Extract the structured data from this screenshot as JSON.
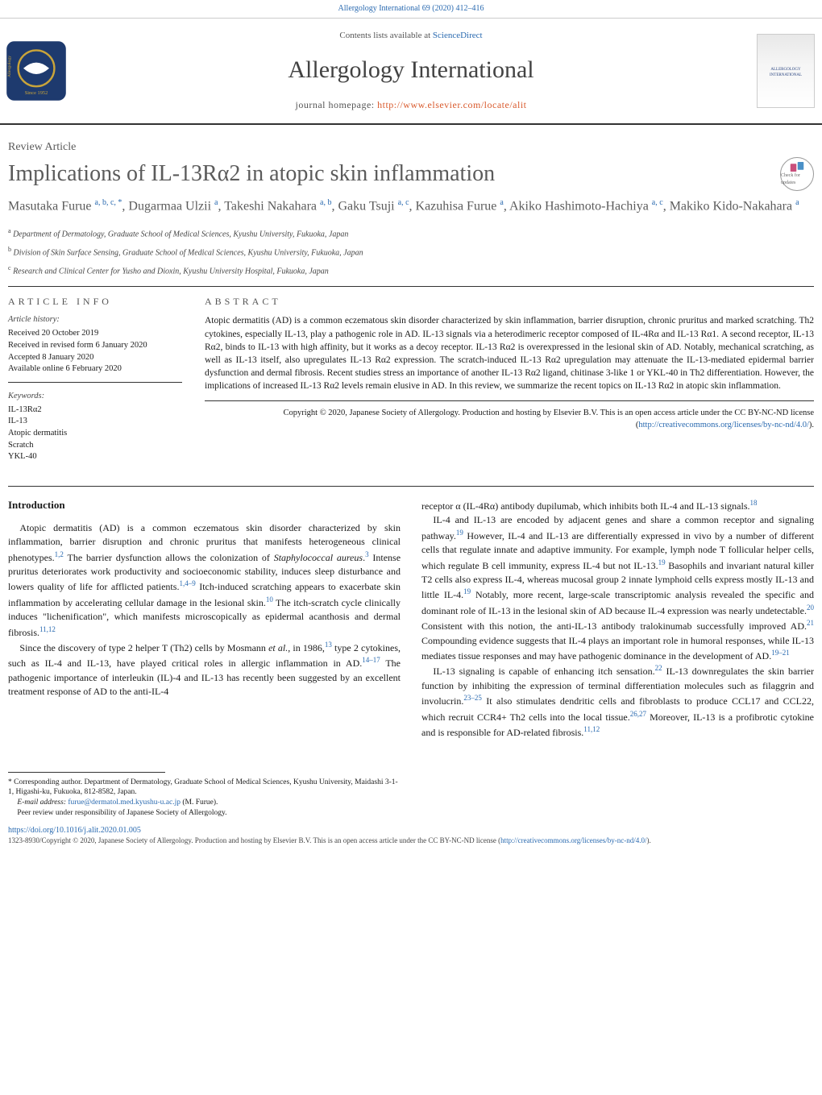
{
  "header_citation": "Allergology International 69 (2020) 412–416",
  "header_citation_link": "Allergology International 69 (2020) 412–416",
  "contents_line_prefix": "Contents lists available at ",
  "contents_link": "ScienceDirect",
  "journal_title": "Allergology International",
  "homepage_prefix": "journal homepage: ",
  "homepage_url": "http://www.elsevier.com/locate/alit",
  "cover_text": "ALLERGOLOGY INTERNATIONAL",
  "article_type": "Review Article",
  "article_title": "Implications of IL-13Rα2 in atopic skin inflammation",
  "check_badge_text": "Check for updates",
  "authors_html": "Masutaka Furue <sup>a, b, c, *</sup>, Dugarmaa Ulzii <sup>a</sup>, Takeshi Nakahara <sup>a, b</sup>, Gaku Tsuji <sup>a, c</sup>, Kazuhisa Furue <sup>a</sup>, Akiko Hashimoto-Hachiya <sup>a, c</sup>, Makiko Kido-Nakahara <sup>a</sup>",
  "affiliations": [
    {
      "sup": "a",
      "text": "Department of Dermatology, Graduate School of Medical Sciences, Kyushu University, Fukuoka, Japan"
    },
    {
      "sup": "b",
      "text": "Division of Skin Surface Sensing, Graduate School of Medical Sciences, Kyushu University, Fukuoka, Japan"
    },
    {
      "sup": "c",
      "text": "Research and Clinical Center for Yusho and Dioxin, Kyushu University Hospital, Fukuoka, Japan"
    }
  ],
  "info_heading": "ARTICLE INFO",
  "history_label": "Article history:",
  "history": [
    "Received 20 October 2019",
    "Received in revised form 6 January 2020",
    "Accepted 8 January 2020",
    "Available online 6 February 2020"
  ],
  "keywords_label": "Keywords:",
  "keywords": [
    "IL-13Rα2",
    "IL-13",
    "Atopic dermatitis",
    "Scratch",
    "YKL-40"
  ],
  "abstract_heading": "ABSTRACT",
  "abstract_text": "Atopic dermatitis (AD) is a common eczematous skin disorder characterized by skin inflammation, barrier disruption, chronic pruritus and marked scratching. Th2 cytokines, especially IL-13, play a pathogenic role in AD. IL-13 signals via a heterodimeric receptor composed of IL-4Rα and IL-13 Rα1. A second receptor, IL-13 Rα2, binds to IL-13 with high affinity, but it works as a decoy receptor. IL-13 Rα2 is overexpressed in the lesional skin of AD. Notably, mechanical scratching, as well as IL-13 itself, also upregulates IL-13 Rα2 expression. The scratch-induced IL-13 Rα2 upregulation may attenuate the IL-13-mediated epidermal barrier dysfunction and dermal fibrosis. Recent studies stress an importance of another IL-13 Rα2 ligand, chitinase 3-like 1 or YKL-40 in Th2 differentiation. However, the implications of increased IL-13 Rα2 levels remain elusive in AD. In this review, we summarize the recent topics on IL-13 Rα2 in atopic skin inflammation.",
  "copyright_text": "Copyright © 2020, Japanese Society of Allergology. Production and hosting by Elsevier B.V. This is an open access article under the CC BY-NC-ND license (",
  "copyright_link": "http://creativecommons.org/licenses/by-nc-nd/4.0/",
  "copyright_close": ").",
  "intro_head": "Introduction",
  "col1_p1_a": "Atopic dermatitis (AD) is a common eczematous skin disorder characterized by skin inflammation, barrier disruption and chronic pruritus that manifests heterogeneous clinical phenotypes.",
  "col1_p1_ref1": "1,2",
  "col1_p1_b": " The barrier dysfunction allows the colonization of ",
  "col1_p1_ital": "Staphylococcal aureus",
  "col1_p1_c": ".",
  "col1_p1_ref2": "3",
  "col1_p1_d": " Intense pruritus deteriorates work productivity and socioeconomic stability, induces sleep disturbance and lowers quality of life for afflicted patients.",
  "col1_p1_ref3": "1,4–9",
  "col1_p1_e": " Itch-induced scratching appears to exacerbate skin inflammation by accelerating cellular damage in the lesional skin.",
  "col1_p1_ref4": "10",
  "col1_p1_f": " The itch-scratch cycle clinically induces \"lichenification\", which manifests microscopically as epidermal acanthosis and dermal fibrosis.",
  "col1_p1_ref5": "11,12",
  "col1_p2_a": "Since the discovery of type 2 helper T (Th2) cells by Mosmann ",
  "col1_p2_ital": "et al.",
  "col1_p2_b": ", in 1986,",
  "col1_p2_ref1": "13",
  "col1_p2_c": " type 2 cytokines, such as IL-4 and IL-13, have played critical roles in allergic inflammation in AD.",
  "col1_p2_ref2": "14–17",
  "col1_p2_d": " The pathogenic importance of interleukin (IL)-4 and IL-13 has recently been suggested by an excellent treatment response of AD to the anti-IL-4",
  "col2_p1_a": "receptor α (IL-4Rα) antibody dupilumab, which inhibits both IL-4 and IL-13 signals.",
  "col2_p1_ref1": "18",
  "col2_p2_a": "IL-4 and IL-13 are encoded by adjacent genes and share a common receptor and signaling pathway.",
  "col2_p2_ref1": "19",
  "col2_p2_b": " However, IL-4 and IL-13 are differentially expressed in vivo by a number of different cells that regulate innate and adaptive immunity. For example, lymph node T follicular helper cells, which regulate B cell immunity, express IL-4 but not IL-13.",
  "col2_p2_ref2": "19",
  "col2_p2_c": " Basophils and invariant natural killer T2 cells also express IL-4, whereas mucosal group 2 innate lymphoid cells express mostly IL-13 and little IL-4.",
  "col2_p2_ref3": "19",
  "col2_p2_d": " Notably, more recent, large-scale transcriptomic analysis revealed the specific and dominant role of IL-13 in the lesional skin of AD because IL-4 expression was nearly undetectable.",
  "col2_p2_ref4": "20",
  "col2_p2_e": " Consistent with this notion, the anti-IL-13 antibody tralokinumab successfully improved AD.",
  "col2_p2_ref5": "21",
  "col2_p2_f": " Compounding evidence suggests that IL-4 plays an important role in humoral responses, while IL-13 mediates tissue responses and may have pathogenic dominance in the development of AD.",
  "col2_p2_ref6": "19–21",
  "col2_p3_a": "IL-13 signaling is capable of enhancing itch sensation.",
  "col2_p3_ref1": "22",
  "col2_p3_b": " IL-13 downregulates the skin barrier function by inhibiting the expression of terminal differentiation molecules such as filaggrin and involucrin.",
  "col2_p3_ref2": "23–25",
  "col2_p3_c": " It also stimulates dendritic cells and fibroblasts to produce CCL17 and CCL22, which recruit CCR4+ Th2 cells into the local tissue.",
  "col2_p3_ref3": "26,27",
  "col2_p3_d": " Moreover, IL-13 is a profibrotic cytokine and is responsible for AD-related fibrosis.",
  "col2_p3_ref4": "11,12",
  "footnote_star": "* Corresponding author. Department of Dermatology, Graduate School of Medical Sciences, Kyushu University, Maidashi 3-1-1, Higashi-ku, Fukuoka, 812-8582, Japan.",
  "footnote_email_label": "E-mail address: ",
  "footnote_email": "furue@dermatol.med.kyushu-u.ac.jp",
  "footnote_email_suffix": " (M. Furue).",
  "footnote_peer": "Peer review under responsibility of Japanese Society of Allergology.",
  "doi": "https://doi.org/10.1016/j.alit.2020.01.005",
  "license_text_a": "1323-8930/Copyright © 2020, Japanese Society of Allergology. Production and hosting by Elsevier B.V. This is an open access article under the CC BY-NC-ND license (",
  "license_link": "http://creativecommons.org/licenses/by-nc-nd/4.0/",
  "license_text_b": ").",
  "colors": {
    "link_blue": "#2a6ab0",
    "link_orange": "#d95b2e",
    "heading_gray": "#5b5b5b",
    "text": "#1a1a1a",
    "logo_blue": "#1e3a6e",
    "logo_gold": "#c9a43a"
  }
}
